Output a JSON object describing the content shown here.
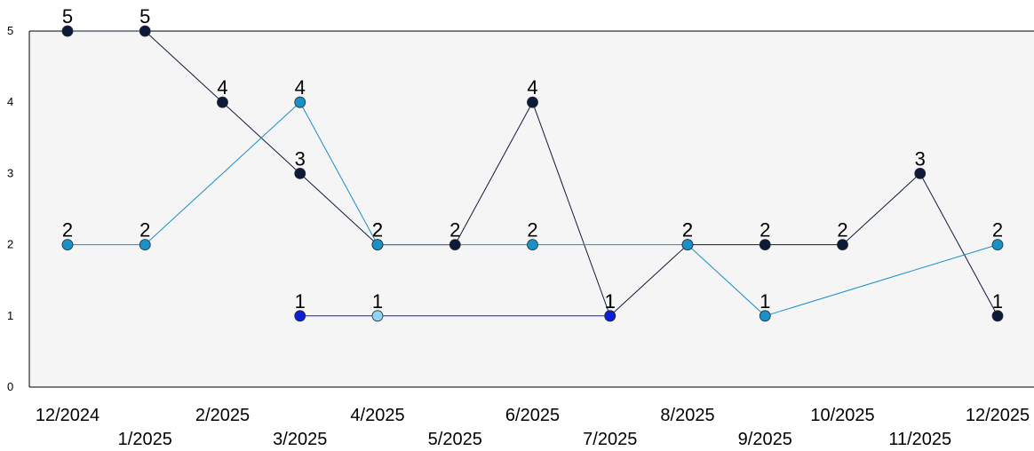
{
  "chart_data": {
    "type": "line",
    "title": "",
    "xlabel": "",
    "ylabel": "",
    "categories": [
      "12/2024",
      "1/2025",
      "2/2025",
      "3/2025",
      "4/2025",
      "5/2025",
      "6/2025",
      "7/2025",
      "8/2025",
      "9/2025",
      "10/2025",
      "11/2025",
      "12/2025"
    ],
    "yticks": [
      "0",
      "1",
      "2",
      "3",
      "4",
      "5"
    ],
    "ylim": [
      0,
      5
    ],
    "grid": false,
    "legend": "none",
    "plot_background": "#f5f5f5",
    "series": [
      {
        "color": "#0d1b3a",
        "values": [
          5,
          5,
          4,
          3,
          2,
          2,
          4,
          1,
          2,
          2,
          2,
          3,
          1
        ]
      },
      {
        "color": "#1a8fc8",
        "values": [
          2,
          2,
          null,
          4,
          2,
          null,
          2,
          null,
          2,
          1,
          null,
          null,
          2
        ]
      },
      {
        "color": "#0a1fd6",
        "values": [
          null,
          null,
          null,
          1,
          1,
          null,
          null,
          1,
          null,
          null,
          null,
          null,
          null
        ],
        "point_colors": [
          null,
          null,
          null,
          "#0a1fd6",
          "#8fd3f5",
          null,
          null,
          "#0a1fd6",
          null,
          null,
          null,
          null,
          null
        ]
      }
    ]
  }
}
